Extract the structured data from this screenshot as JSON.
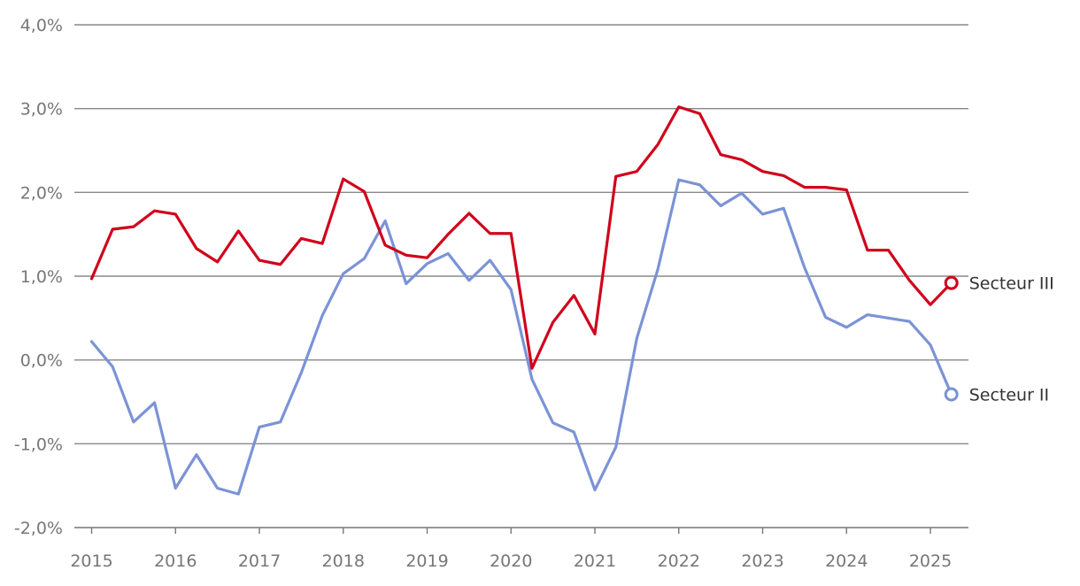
{
  "chart_data": {
    "type": "line",
    "title": "",
    "xlabel": "",
    "ylabel": "",
    "ylim": [
      -2.0,
      4.0
    ],
    "y_ticks": [
      {
        "value": -2.0,
        "label": "-2,0%"
      },
      {
        "value": -1.0,
        "label": "-1,0%"
      },
      {
        "value": 0.0,
        "label": "0,0%"
      },
      {
        "value": 1.0,
        "label": "1,0%"
      },
      {
        "value": 2.0,
        "label": "2,0%"
      },
      {
        "value": 3.0,
        "label": "3,0%"
      },
      {
        "value": 4.0,
        "label": "4,0%"
      }
    ],
    "x_ticks": [
      {
        "value": 2015,
        "label": "2015"
      },
      {
        "value": 2016,
        "label": "2016"
      },
      {
        "value": 2017,
        "label": "2017"
      },
      {
        "value": 2018,
        "label": "2018"
      },
      {
        "value": 2019,
        "label": "2019"
      },
      {
        "value": 2020,
        "label": "2020"
      },
      {
        "value": 2021,
        "label": "2021"
      },
      {
        "value": 2022,
        "label": "2022"
      },
      {
        "value": 2023,
        "label": "2023"
      },
      {
        "value": 2024,
        "label": "2024"
      },
      {
        "value": 2025,
        "label": "2025"
      }
    ],
    "x": [
      "2015 Q1",
      "2015 Q2",
      "2015 Q3",
      "2015 Q4",
      "2016 Q1",
      "2016 Q2",
      "2016 Q3",
      "2016 Q4",
      "2017 Q1",
      "2017 Q2",
      "2017 Q3",
      "2017 Q4",
      "2018 Q1",
      "2018 Q2",
      "2018 Q3",
      "2018 Q4",
      "2019 Q1",
      "2019 Q2",
      "2019 Q3",
      "2019 Q4",
      "2020 Q1",
      "2020 Q2",
      "2020 Q3",
      "2020 Q4",
      "2021 Q1",
      "2021 Q2",
      "2021 Q3",
      "2021 Q4",
      "2022 Q1",
      "2022 Q2",
      "2022 Q3",
      "2022 Q4",
      "2023 Q1",
      "2023 Q2",
      "2023 Q3",
      "2023 Q4",
      "2024 Q1",
      "2024 Q2",
      "2024 Q3",
      "2024 Q4",
      "2025 Q1",
      "2025 Q2"
    ],
    "series": [
      {
        "name": "Secteur III",
        "color": "#d0021b",
        "values": [
          0.97,
          1.56,
          1.59,
          1.78,
          1.74,
          1.33,
          1.17,
          1.54,
          1.19,
          1.14,
          1.45,
          1.39,
          2.16,
          2.01,
          1.37,
          1.25,
          1.22,
          1.5,
          1.75,
          1.51,
          1.51,
          -0.1,
          0.45,
          0.77,
          0.31,
          2.19,
          2.25,
          2.57,
          3.02,
          2.94,
          2.45,
          2.39,
          2.25,
          2.2,
          2.06,
          2.06,
          2.03,
          1.31,
          1.31,
          0.95,
          0.66,
          0.92
        ]
      },
      {
        "name": "Secteur II",
        "color": "#7b93d6",
        "values": [
          0.22,
          -0.08,
          -0.74,
          -0.51,
          -1.53,
          -1.13,
          -1.53,
          -1.6,
          -0.8,
          -0.74,
          -0.15,
          0.53,
          1.03,
          1.21,
          1.66,
          0.91,
          1.15,
          1.27,
          0.95,
          1.19,
          0.84,
          -0.23,
          -0.75,
          -0.86,
          -1.55,
          -1.04,
          0.26,
          1.08,
          2.15,
          2.09,
          1.84,
          1.99,
          1.74,
          1.81,
          1.1,
          0.51,
          0.39,
          0.54,
          0.5,
          0.46,
          0.18,
          -0.41
        ]
      }
    ],
    "legend_placement": "end-of-line labels",
    "grid": true
  }
}
